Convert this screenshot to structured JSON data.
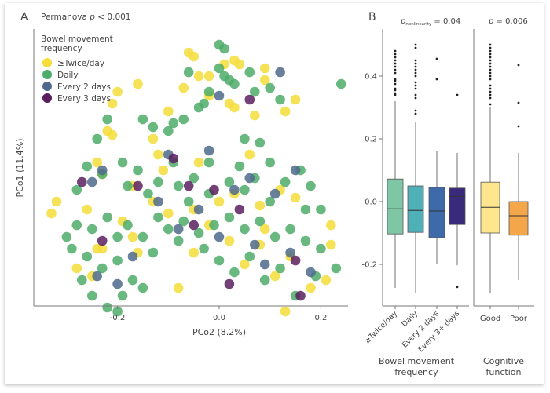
{
  "panels": {
    "a_label": "A",
    "b_label": "B"
  },
  "chart_data": [
    {
      "type": "scatter",
      "panel": "A",
      "annotation": "Permanova p < 0.001",
      "annotation_prefix": "Permanova ",
      "annotation_p": "p",
      "annotation_suffix": " < 0.001",
      "xlabel": "PCo2 (8.2%)",
      "ylabel": "PCo1 (11.4%)",
      "xlim": [
        -0.34,
        0.26
      ],
      "ylim": [
        -0.32,
        0.42
      ],
      "xticks": [
        -0.2,
        0.0,
        0.2
      ],
      "xtick_labels": [
        "-0.2",
        "0.0",
        "0.2"
      ],
      "grid": false,
      "legend": {
        "title_line1": "Bowel movement",
        "title_line2": "frequency",
        "placement": "top-left",
        "entries": [
          {
            "label": "≥Twice/day",
            "color": "#f5dd3a"
          },
          {
            "label": "Daily",
            "color": "#4dac6a"
          },
          {
            "label": "Every 2 days",
            "color": "#4f6a8c"
          },
          {
            "label": "Every 3 days",
            "color": "#5a1e5f"
          }
        ]
      },
      "series": [
        {
          "name": "≥Twice/day",
          "color": "#f5dd3a",
          "points": [
            [
              -0.06,
              0.38
            ],
            [
              -0.05,
              0.37
            ],
            [
              0.03,
              0.36
            ],
            [
              0.04,
              0.35
            ],
            [
              0.09,
              0.34
            ],
            [
              0.01,
              0.35
            ],
            [
              -0.04,
              0.32
            ],
            [
              -0.02,
              0.32
            ],
            [
              0.09,
              0.31
            ],
            [
              -0.16,
              0.3
            ],
            [
              -0.2,
              0.28
            ],
            [
              -0.21,
              0.25
            ],
            [
              -0.07,
              0.29
            ],
            [
              -0.02,
              0.27
            ],
            [
              0.15,
              0.26
            ],
            [
              0.02,
              0.25
            ],
            [
              0.03,
              0.24
            ],
            [
              -0.1,
              0.23
            ],
            [
              0.07,
              0.22
            ],
            [
              0.13,
              0.23
            ],
            [
              -0.22,
              0.18
            ],
            [
              -0.21,
              0.17
            ],
            [
              -0.13,
              0.16
            ],
            [
              -0.12,
              0.12
            ],
            [
              -0.24,
              0.1
            ],
            [
              -0.23,
              0.07
            ],
            [
              -0.11,
              0.08
            ],
            [
              -0.17,
              0.04
            ],
            [
              -0.32,
              0.0
            ],
            [
              -0.33,
              -0.03
            ],
            [
              -0.26,
              -0.02
            ],
            [
              -0.19,
              -0.05
            ],
            [
              -0.1,
              -0.03
            ],
            [
              -0.05,
              -0.02
            ],
            [
              0.0,
              0.0
            ],
            [
              0.03,
              0.02
            ],
            [
              0.08,
              -0.01
            ],
            [
              0.12,
              0.03
            ],
            [
              0.15,
              0.01
            ],
            [
              -0.24,
              -0.12
            ],
            [
              -0.23,
              -0.12
            ],
            [
              -0.17,
              -0.09
            ],
            [
              -0.16,
              -0.13
            ],
            [
              -0.28,
              -0.17
            ],
            [
              -0.25,
              -0.19
            ],
            [
              -0.05,
              -0.13
            ],
            [
              0.02,
              -0.1
            ],
            [
              0.05,
              -0.16
            ],
            [
              0.08,
              -0.11
            ],
            [
              0.11,
              -0.19
            ],
            [
              0.14,
              -0.14
            ],
            [
              0.18,
              -0.22
            ],
            [
              0.22,
              -0.06
            ],
            [
              0.22,
              -0.11
            ],
            [
              0.21,
              -0.2
            ],
            [
              -0.08,
              -0.22
            ],
            [
              0.13,
              -0.28
            ],
            [
              -0.02,
              -0.06
            ],
            [
              0.09,
              -0.07
            ],
            [
              -0.13,
              0.0
            ],
            [
              -0.04,
              0.1
            ],
            [
              0.06,
              0.12
            ]
          ]
        },
        {
          "name": "Daily",
          "color": "#4dac6a",
          "points": [
            [
              0.0,
              0.4
            ],
            [
              0.01,
              0.39
            ],
            [
              0.0,
              0.34
            ],
            [
              0.01,
              0.32
            ],
            [
              0.02,
              0.31
            ],
            [
              0.03,
              0.3
            ],
            [
              0.06,
              0.33
            ],
            [
              -0.06,
              0.33
            ],
            [
              0.07,
              0.28
            ],
            [
              0.1,
              0.29
            ],
            [
              -0.02,
              0.28
            ],
            [
              -0.03,
              0.25
            ],
            [
              0.12,
              0.26
            ],
            [
              0.24,
              0.3
            ],
            [
              -0.22,
              0.21
            ],
            [
              -0.15,
              0.21
            ],
            [
              -0.04,
              0.24
            ],
            [
              -0.07,
              0.21
            ],
            [
              -0.13,
              0.19
            ],
            [
              -0.09,
              0.2
            ],
            [
              -0.1,
              0.18
            ],
            [
              0.05,
              0.16
            ],
            [
              -0.24,
              0.16
            ],
            [
              0.08,
              0.15
            ],
            [
              -0.26,
              0.09
            ],
            [
              -0.23,
              0.07
            ],
            [
              -0.18,
              0.04
            ],
            [
              -0.14,
              0.02
            ],
            [
              -0.12,
              0.05
            ],
            [
              -0.08,
              0.04
            ],
            [
              -0.05,
              0.06
            ],
            [
              -0.02,
              0.02
            ],
            [
              0.02,
              0.05
            ],
            [
              0.05,
              0.03
            ],
            [
              0.1,
              0.0
            ],
            [
              0.13,
              0.05
            ],
            [
              0.17,
              -0.02
            ],
            [
              0.2,
              -0.02
            ],
            [
              -0.28,
              -0.06
            ],
            [
              -0.25,
              -0.07
            ],
            [
              -0.22,
              -0.04
            ],
            [
              -0.2,
              -0.09
            ],
            [
              -0.18,
              -0.06
            ],
            [
              -0.15,
              -0.09
            ],
            [
              -0.12,
              -0.04
            ],
            [
              -0.1,
              -0.07
            ],
            [
              -0.07,
              -0.05
            ],
            [
              -0.04,
              -0.08
            ],
            [
              -0.01,
              -0.06
            ],
            [
              0.02,
              -0.04
            ],
            [
              0.05,
              -0.07
            ],
            [
              0.08,
              -0.05
            ],
            [
              0.11,
              -0.09
            ],
            [
              0.14,
              -0.07
            ],
            [
              0.17,
              -0.1
            ],
            [
              0.2,
              -0.12
            ],
            [
              -0.29,
              -0.12
            ],
            [
              -0.26,
              -0.14
            ],
            [
              -0.23,
              -0.17
            ],
            [
              -0.2,
              -0.15
            ],
            [
              -0.17,
              -0.2
            ],
            [
              -0.15,
              -0.22
            ],
            [
              -0.25,
              -0.24
            ],
            [
              -0.22,
              -0.27
            ],
            [
              -0.19,
              -0.24
            ],
            [
              -0.03,
              -0.12
            ],
            [
              0.0,
              -0.15
            ],
            [
              0.03,
              -0.18
            ],
            [
              0.06,
              -0.14
            ],
            [
              0.09,
              -0.2
            ],
            [
              0.12,
              -0.17
            ],
            [
              0.15,
              -0.24
            ],
            [
              0.19,
              -0.19
            ],
            [
              0.23,
              -0.17
            ],
            [
              -0.2,
              -0.28
            ],
            [
              -0.27,
              -0.2
            ],
            [
              -0.13,
              -0.13
            ],
            [
              -0.08,
              -0.1
            ],
            [
              -0.06,
              0.0
            ],
            [
              -0.02,
              0.1
            ],
            [
              0.04,
              0.09
            ],
            [
              0.07,
              0.06
            ],
            [
              0.1,
              0.1
            ],
            [
              0.16,
              0.08
            ],
            [
              0.18,
              0.04
            ],
            [
              -0.09,
              0.1
            ],
            [
              -0.16,
              0.08
            ],
            [
              -0.19,
              0.1
            ],
            [
              -0.28,
              0.03
            ],
            [
              -0.3,
              -0.09
            ]
          ]
        },
        {
          "name": "Every 2 days",
          "color": "#4f6a8c",
          "points": [
            [
              0.12,
              0.33
            ],
            [
              0.0,
              0.27
            ],
            [
              -0.23,
              0.08
            ],
            [
              -0.25,
              0.05
            ],
            [
              -0.12,
              0.0
            ],
            [
              -0.04,
              -0.02
            ],
            [
              0.03,
              0.03
            ],
            [
              0.06,
              0.06
            ],
            [
              0.11,
              0.02
            ],
            [
              0.15,
              0.08
            ],
            [
              -0.08,
              -0.07
            ],
            [
              0.0,
              -0.09
            ],
            [
              0.07,
              -0.11
            ],
            [
              0.14,
              -0.13
            ],
            [
              -0.1,
              0.12
            ],
            [
              -0.02,
              0.13
            ],
            [
              -0.17,
              -0.14
            ],
            [
              -0.24,
              -0.19
            ],
            [
              0.09,
              -0.16
            ],
            [
              0.18,
              -0.18
            ],
            [
              -0.2,
              -0.21
            ]
          ]
        },
        {
          "name": "Every 3 days",
          "color": "#5a1e5f",
          "points": [
            [
              0.06,
              0.26
            ],
            [
              -0.09,
              0.11
            ],
            [
              -0.27,
              0.05
            ],
            [
              -0.16,
              0.04
            ],
            [
              -0.06,
              0.04
            ],
            [
              -0.01,
              0.03
            ],
            [
              0.04,
              -0.02
            ],
            [
              -0.23,
              -0.1
            ],
            [
              0.15,
              -0.15
            ],
            [
              -0.05,
              -0.06
            ],
            [
              0.02,
              -0.21
            ],
            [
              0.16,
              -0.24
            ]
          ]
        }
      ]
    },
    {
      "type": "box",
      "panel": "B",
      "ylim": [
        -0.32,
        0.52
      ],
      "yticks": [
        -0.2,
        0.0,
        0.2,
        0.4
      ],
      "ytick_labels": [
        "-0.2",
        "0.0",
        "0.2",
        "0.4"
      ],
      "grid": false,
      "groups": [
        {
          "xlabel_line1": "Bowel movement",
          "xlabel_line2": "frequency",
          "annotation_p": "p",
          "annotation_sub": "nonlinearity",
          "annotation_suffix": " = 0.04",
          "boxes": [
            {
              "label": "≥Twice/day",
              "color": "#7fc6a4",
              "q1": -0.103,
              "median": -0.023,
              "q3": 0.072,
              "whisker_low": -0.275,
              "whisker_high": 0.32,
              "outliers": [
                0.34,
                0.345,
                0.355,
                0.36,
                0.375,
                0.385,
                0.39,
                0.41,
                0.42,
                0.43,
                0.44,
                0.45,
                0.46,
                0.47,
                0.48
              ]
            },
            {
              "label": "Daily",
              "color": "#4fb0b8",
              "q1": -0.098,
              "median": -0.028,
              "q3": 0.05,
              "whisker_low": -0.29,
              "whisker_high": 0.255,
              "outliers": [
                0.28,
                0.29,
                0.33,
                0.34,
                0.36,
                0.37,
                0.38,
                0.4,
                0.41,
                0.42,
                0.43,
                0.44,
                0.45,
                0.49,
                0.5
              ]
            },
            {
              "label": "Every 2 days",
              "color": "#3e6aaa",
              "q1": -0.115,
              "median": -0.03,
              "q3": 0.045,
              "whisker_low": -0.2,
              "whisker_high": 0.16,
              "outliers": [
                0.39,
                0.455
              ]
            },
            {
              "label": "Every 3+ days",
              "color": "#3a2a7c",
              "q1": -0.073,
              "median": 0.017,
              "q3": 0.043,
              "whisker_low": -0.203,
              "whisker_high": 0.155,
              "outliers": [
                0.34,
                -0.272
              ]
            }
          ]
        },
        {
          "xlabel_line1": "Cognitive",
          "xlabel_line2": "function",
          "annotation_p": "p",
          "annotation_sub": "",
          "annotation_suffix": " = 0.006",
          "boxes": [
            {
              "label": "Good",
              "color": "#fde68e",
              "q1": -0.1,
              "median": -0.018,
              "q3": 0.062,
              "whisker_low": -0.29,
              "whisker_high": 0.3,
              "outliers": [
                0.31,
                0.33,
                0.34,
                0.35,
                0.36,
                0.37,
                0.39,
                0.4,
                0.41,
                0.42,
                0.43,
                0.44,
                0.45,
                0.46,
                0.47,
                0.48,
                0.49,
                0.5
              ]
            },
            {
              "label": "Poor",
              "color": "#f4a64a",
              "q1": -0.107,
              "median": -0.045,
              "q3": 0.0,
              "whisker_low": -0.25,
              "whisker_high": 0.155,
              "outliers": [
                0.24,
                0.315,
                0.435
              ]
            }
          ]
        }
      ]
    }
  ]
}
